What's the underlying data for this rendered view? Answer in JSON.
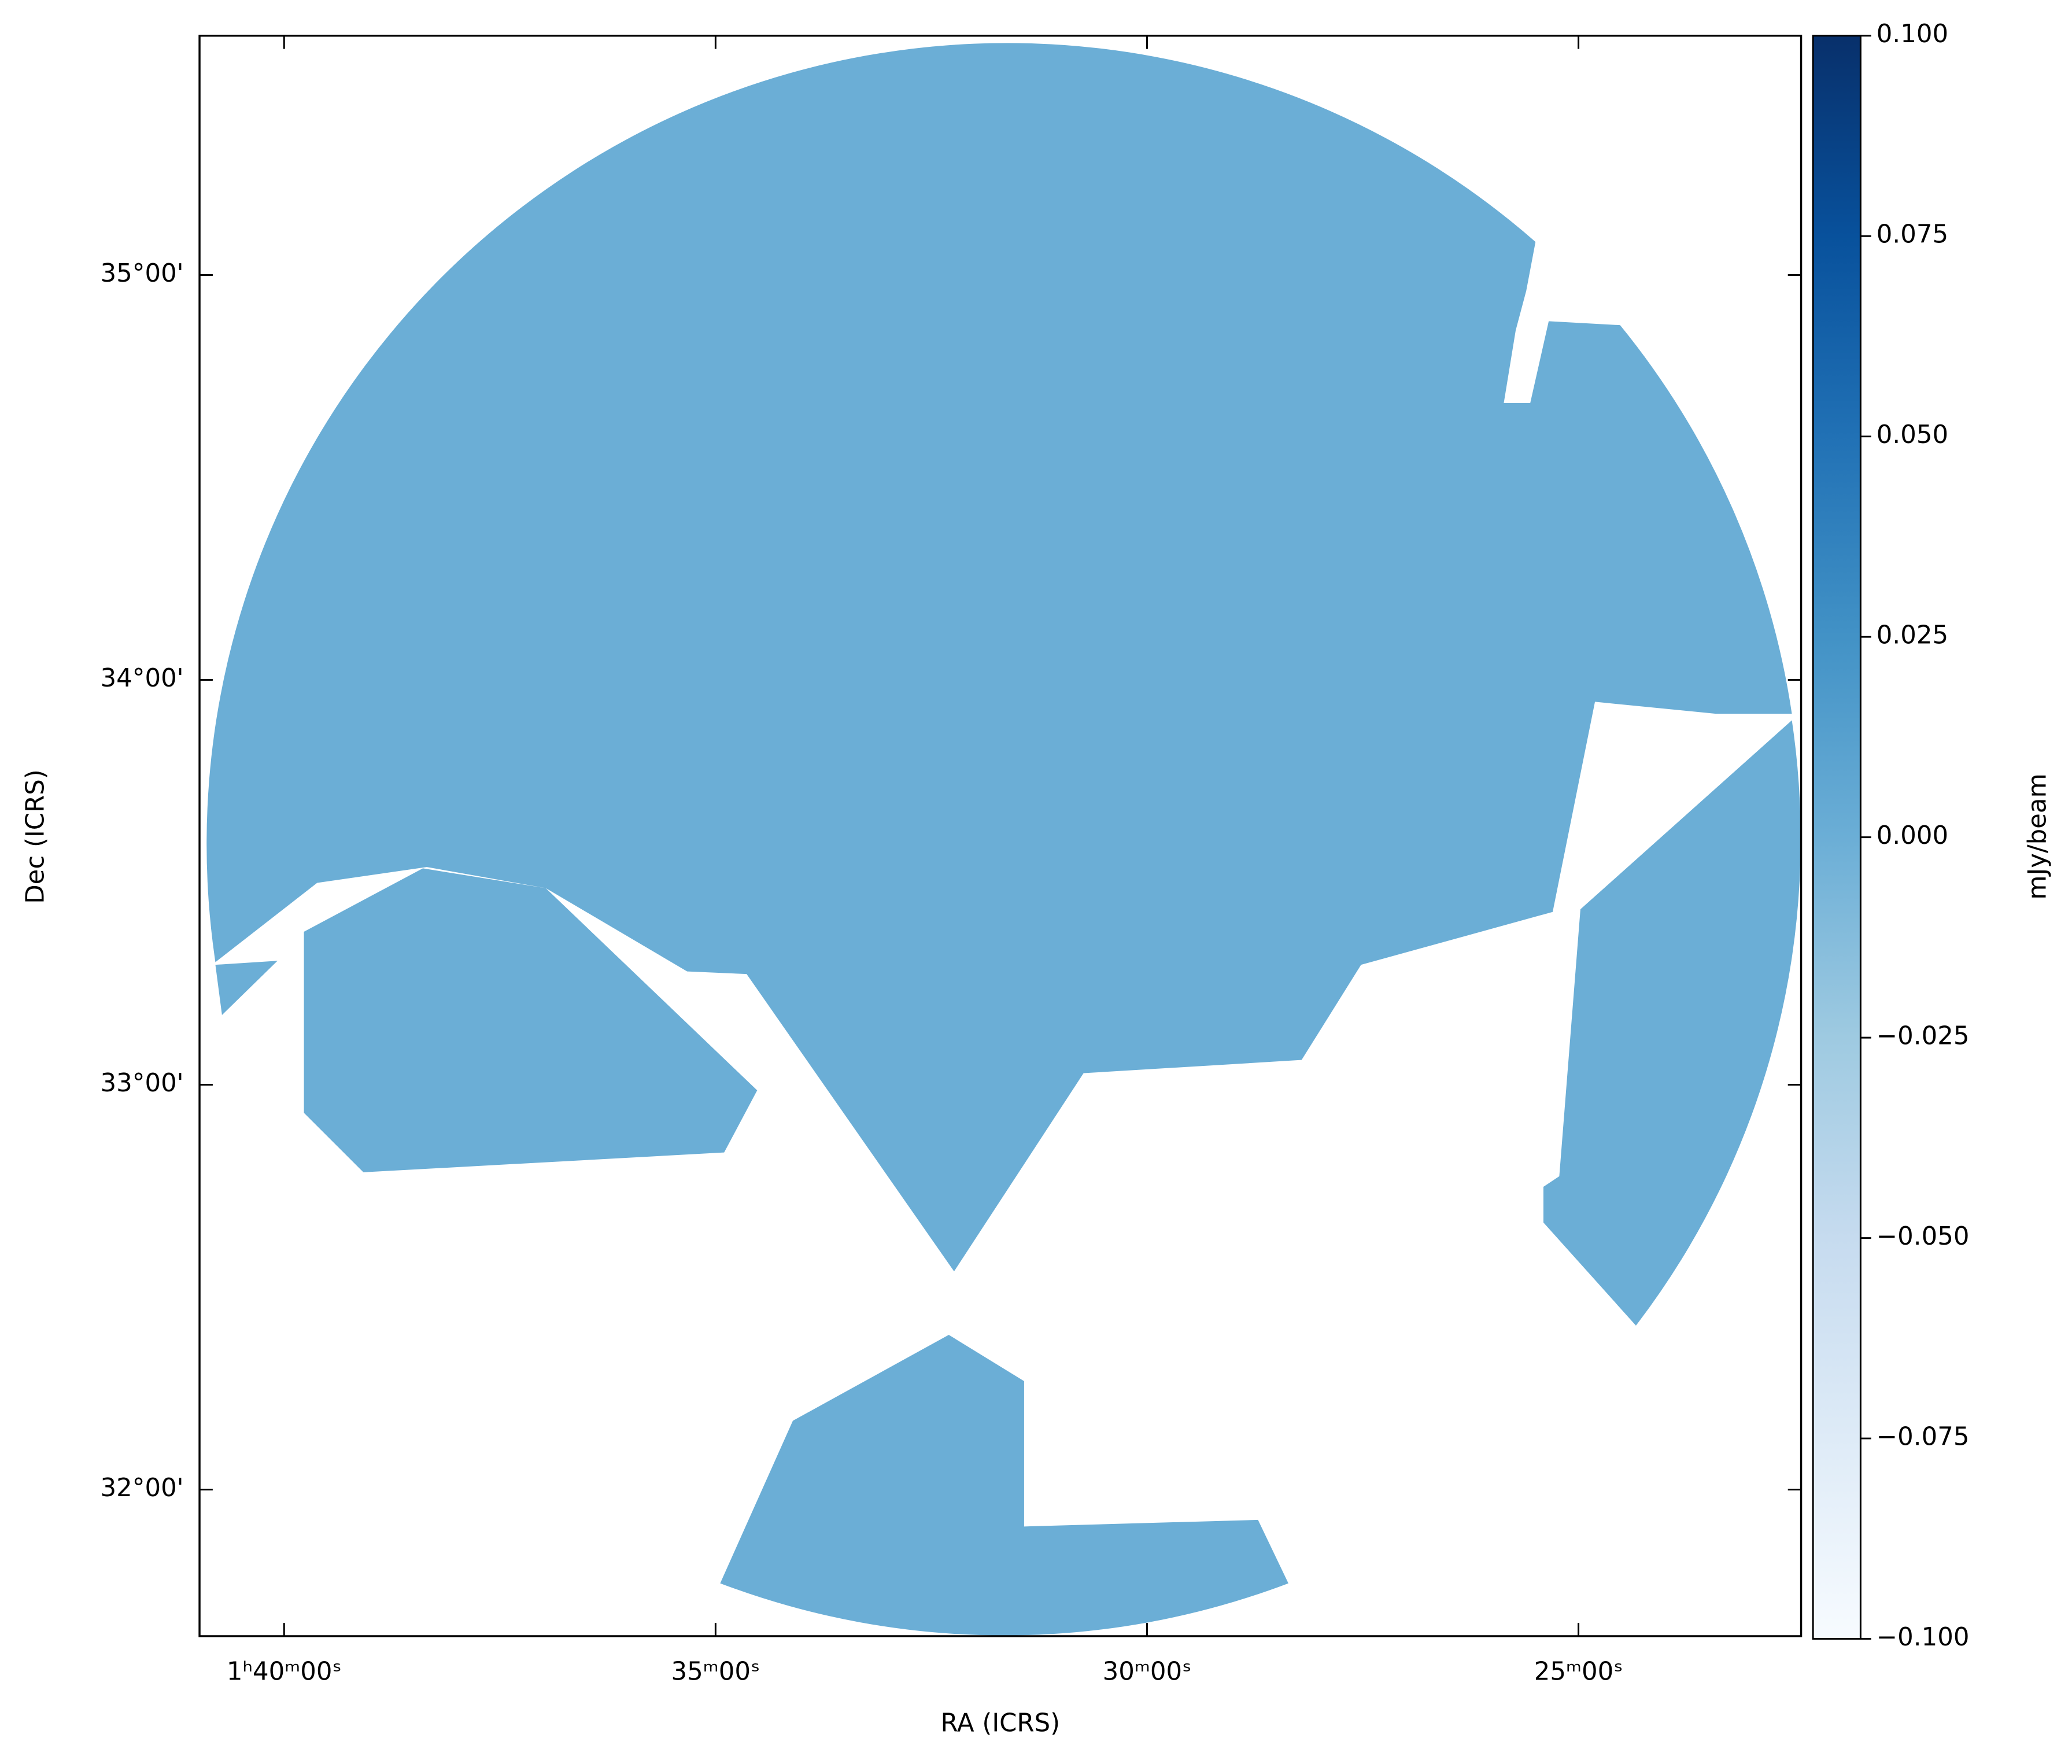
{
  "chart_data": {
    "type": "image",
    "xlabel": "RA (ICRS)",
    "ylabel": "Dec (ICRS)",
    "color": "#6baed6",
    "xlim": [
      25.245,
      20.605
    ],
    "ylim": [
      31.638,
      35.591
    ],
    "xticks": [
      {
        "value": 25,
        "label": "1ʰ40ᵐ00ˢ"
      },
      {
        "value": 23.75,
        "label": "35ᵐ00ˢ"
      },
      {
        "value": 22.5,
        "label": "30ᵐ00ˢ"
      },
      {
        "value": 21.25,
        "label": "25ᵐ00ˢ"
      }
    ],
    "yticks": [
      {
        "value": 32,
        "label": "32°00'"
      },
      {
        "value": 33,
        "label": "33°00'"
      },
      {
        "value": 34,
        "label": "34°00'"
      },
      {
        "value": 35,
        "label": "35°00'"
      }
    ],
    "colorbar": {
      "label": "mJy/beam",
      "colormap": "Blues",
      "lim": [
        -0.1,
        0.1
      ],
      "ticks": [
        {
          "value": -0.1,
          "label": "−0.100"
        },
        {
          "value": -0.075,
          "label": "−0.075"
        },
        {
          "value": -0.05,
          "label": "−0.050"
        },
        {
          "value": -0.025,
          "label": "−0.025"
        },
        {
          "value": 0,
          "label": "0.000"
        },
        {
          "value": 0.025,
          "label": "0.025"
        },
        {
          "value": 0.05,
          "label": "0.050"
        },
        {
          "value": 0.075,
          "label": "0.075"
        },
        {
          "value": 0.1,
          "label": "0.100"
        }
      ]
    }
  }
}
